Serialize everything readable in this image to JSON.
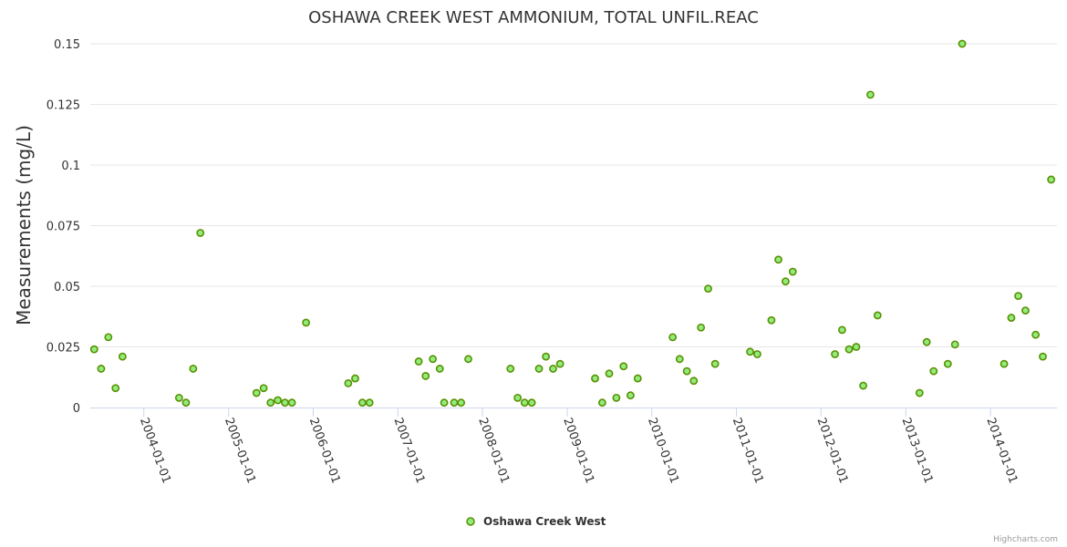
{
  "chart_data": {
    "type": "scatter",
    "title": "OSHAWA CREEK WEST AMMONIUM, TOTAL UNFIL.REAC",
    "ylabel": "Measurements (mg/L)",
    "xlabel": "",
    "ylim": [
      0,
      0.15
    ],
    "yticks": [
      0,
      0.025,
      0.05,
      0.075,
      0.1,
      0.125,
      0.15
    ],
    "ytick_labels": [
      "0",
      "0.025",
      "0.05",
      "0.075",
      "0.1",
      "0.125",
      "0.15"
    ],
    "xlim": [
      "2003-05-15",
      "2014-10-15"
    ],
    "xticks": [
      "2004-01-01",
      "2005-01-01",
      "2006-01-01",
      "2007-01-01",
      "2008-01-01",
      "2009-01-01",
      "2010-01-01",
      "2011-01-01",
      "2012-01-01",
      "2013-01-01",
      "2014-01-01"
    ],
    "grid": true,
    "legend_position": "bottom-center",
    "series": [
      {
        "name": "Oshawa Creek West",
        "color": "#90ed7d",
        "edge_color": "#5a8f00",
        "points": [
          [
            "2003-06-01",
            0.024
          ],
          [
            "2003-07-01",
            0.016
          ],
          [
            "2003-08-01",
            0.029
          ],
          [
            "2003-09-01",
            0.008
          ],
          [
            "2003-10-01",
            0.021
          ],
          [
            "2004-06-01",
            0.004
          ],
          [
            "2004-07-01",
            0.002
          ],
          [
            "2004-08-01",
            0.016
          ],
          [
            "2004-09-01",
            0.072
          ],
          [
            "2005-05-01",
            0.006
          ],
          [
            "2005-06-01",
            0.008
          ],
          [
            "2005-07-01",
            0.002
          ],
          [
            "2005-08-01",
            0.003
          ],
          [
            "2005-09-01",
            0.002
          ],
          [
            "2005-10-01",
            0.002
          ],
          [
            "2005-12-01",
            0.035
          ],
          [
            "2006-06-01",
            0.01
          ],
          [
            "2006-07-01",
            0.012
          ],
          [
            "2006-08-01",
            0.002
          ],
          [
            "2006-09-01",
            0.002
          ],
          [
            "2007-04-01",
            0.019
          ],
          [
            "2007-05-01",
            0.013
          ],
          [
            "2007-06-01",
            0.02
          ],
          [
            "2007-07-01",
            0.016
          ],
          [
            "2007-07-20",
            0.002
          ],
          [
            "2007-09-01",
            0.002
          ],
          [
            "2007-10-01",
            0.002
          ],
          [
            "2007-11-01",
            0.02
          ],
          [
            "2008-05-01",
            0.016
          ],
          [
            "2008-06-01",
            0.004
          ],
          [
            "2008-07-01",
            0.002
          ],
          [
            "2008-08-01",
            0.002
          ],
          [
            "2008-09-01",
            0.016
          ],
          [
            "2008-10-01",
            0.021
          ],
          [
            "2008-11-01",
            0.016
          ],
          [
            "2008-12-01",
            0.018
          ],
          [
            "2009-05-01",
            0.012
          ],
          [
            "2009-06-01",
            0.002
          ],
          [
            "2009-07-01",
            0.014
          ],
          [
            "2009-08-01",
            0.004
          ],
          [
            "2009-09-01",
            0.017
          ],
          [
            "2009-10-01",
            0.005
          ],
          [
            "2009-11-01",
            0.012
          ],
          [
            "2010-04-01",
            0.029
          ],
          [
            "2010-05-01",
            0.02
          ],
          [
            "2010-06-01",
            0.015
          ],
          [
            "2010-07-01",
            0.011
          ],
          [
            "2010-08-01",
            0.033
          ],
          [
            "2010-09-01",
            0.049
          ],
          [
            "2010-10-01",
            0.018
          ],
          [
            "2011-03-01",
            0.023
          ],
          [
            "2011-04-01",
            0.022
          ],
          [
            "2011-06-01",
            0.036
          ],
          [
            "2011-07-01",
            0.061
          ],
          [
            "2011-08-01",
            0.052
          ],
          [
            "2011-09-01",
            0.056
          ],
          [
            "2012-03-01",
            0.022
          ],
          [
            "2012-04-01",
            0.032
          ],
          [
            "2012-05-01",
            0.024
          ],
          [
            "2012-06-01",
            0.025
          ],
          [
            "2012-07-01",
            0.009
          ],
          [
            "2012-08-01",
            0.129
          ],
          [
            "2012-09-01",
            0.038
          ],
          [
            "2013-03-01",
            0.006
          ],
          [
            "2013-04-01",
            0.027
          ],
          [
            "2013-05-01",
            0.015
          ],
          [
            "2013-07-01",
            0.018
          ],
          [
            "2013-08-01",
            0.026
          ],
          [
            "2013-09-01",
            0.15
          ],
          [
            "2014-03-01",
            0.018
          ],
          [
            "2014-04-01",
            0.037
          ],
          [
            "2014-05-01",
            0.046
          ],
          [
            "2014-06-01",
            0.04
          ],
          [
            "2014-07-15",
            0.03
          ],
          [
            "2014-08-15",
            0.021
          ],
          [
            "2014-09-20",
            0.094
          ]
        ]
      }
    ],
    "credits": "Highcharts.com"
  }
}
